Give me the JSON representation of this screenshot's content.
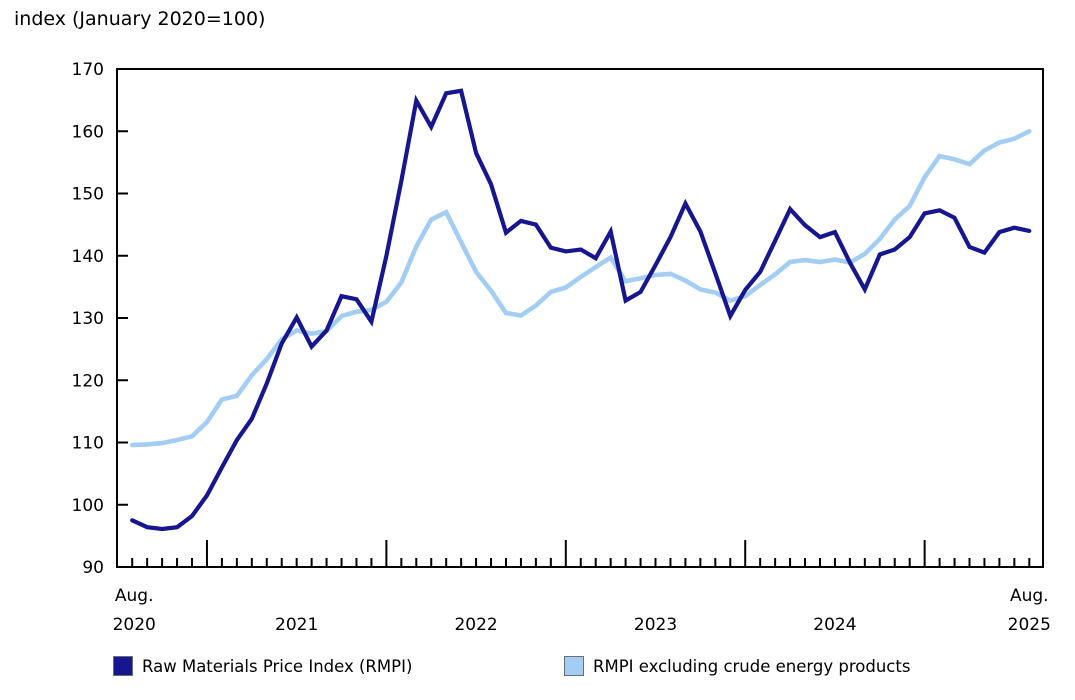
{
  "title": "index (January 2020=100)",
  "chart_data": {
    "type": "line",
    "title": "index (January 2020=100)",
    "grid": false,
    "legend_position": "bottom",
    "ylim": [
      90,
      170
    ],
    "y_ticks": [
      90,
      100,
      110,
      120,
      130,
      140,
      150,
      160,
      170
    ],
    "x_axis": {
      "start_label_line1": "Aug.",
      "start_label_line2": "2020",
      "end_label_line1": "Aug.",
      "end_label_line2": "2025",
      "year_labels": [
        "2021",
        "2022",
        "2023",
        "2024"
      ],
      "interval": "monthly",
      "n_points": 61,
      "january_major_tick_indices": [
        5,
        17,
        29,
        41,
        53
      ],
      "year_label_center_indices": [
        11,
        23,
        35,
        47
      ]
    },
    "series": [
      {
        "name": "Raw Materials Price Index (RMPI)",
        "color": "#16168f",
        "values": [
          97.5,
          96.4,
          96.1,
          96.4,
          98.2,
          101.5,
          106.0,
          110.4,
          113.8,
          119.5,
          125.9,
          130.1,
          125.4,
          128.0,
          133.5,
          133.0,
          129.4,
          140.0,
          152.0,
          164.9,
          160.7,
          166.1,
          166.5,
          156.5,
          151.5,
          143.7,
          145.6,
          145.0,
          141.3,
          140.7,
          141.0,
          139.6,
          143.9,
          132.8,
          134.2,
          138.5,
          143.0,
          148.4,
          143.9,
          137.2,
          130.3,
          134.5,
          137.4,
          142.4,
          147.5,
          144.9,
          143.0,
          143.8,
          138.9,
          134.6,
          140.2,
          141.0,
          143.0,
          146.8,
          147.3,
          146.1,
          141.4,
          140.5,
          143.8,
          144.5,
          144.0
        ]
      },
      {
        "name": "RMPI excluding crude energy products",
        "color": "#a3cdf2",
        "values": [
          109.6,
          109.7,
          109.9,
          110.4,
          111.0,
          113.3,
          116.9,
          117.5,
          120.8,
          123.4,
          126.6,
          128.0,
          127.5,
          127.9,
          130.3,
          131.0,
          131.3,
          132.6,
          135.7,
          141.5,
          145.8,
          147.0,
          142.2,
          137.4,
          134.4,
          130.8,
          130.4,
          132.0,
          134.2,
          134.9,
          136.6,
          138.2,
          139.7,
          135.9,
          136.4,
          136.9,
          137.1,
          136.0,
          134.6,
          134.1,
          132.8,
          133.5,
          135.3,
          137.0,
          139.0,
          139.3,
          139.0,
          139.4,
          138.9,
          140.3,
          142.7,
          145.8,
          148.0,
          152.6,
          156.0,
          155.5,
          154.7,
          156.9,
          158.2,
          158.8,
          160.0
        ]
      }
    ]
  },
  "legend": {
    "items": [
      {
        "label": "Raw Materials Price Index (RMPI)",
        "color": "#16168f"
      },
      {
        "label": "RMPI excluding crude energy products",
        "color": "#a3cdf2"
      }
    ]
  }
}
